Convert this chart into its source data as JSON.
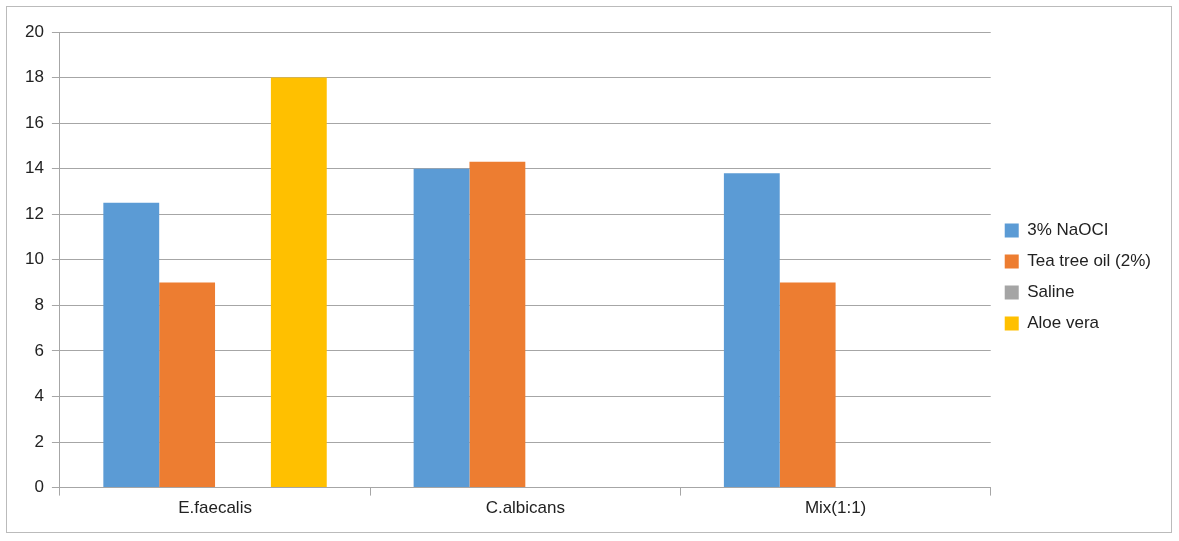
{
  "chart_data": {
    "type": "bar",
    "categories": [
      "E.faecalis",
      "C.albicans",
      "Mix(1:1)"
    ],
    "series": [
      {
        "name": "3% NaOCI",
        "color": "#5b9bd5",
        "values": [
          12.5,
          14,
          13.8
        ]
      },
      {
        "name": "Tea tree oil (2%)",
        "color": "#ed7d31",
        "values": [
          9,
          14.3,
          9
        ]
      },
      {
        "name": "Saline",
        "color": "#a5a5a5",
        "values": [
          0,
          0,
          0
        ]
      },
      {
        "name": "Aloe vera",
        "color": "#ffc000",
        "values": [
          18,
          0,
          0
        ]
      }
    ],
    "ylim": [
      0,
      20
    ],
    "yticks": [
      0,
      2,
      4,
      6,
      8,
      10,
      12,
      14,
      16,
      18,
      20
    ],
    "grid": "y",
    "legend": "right"
  }
}
